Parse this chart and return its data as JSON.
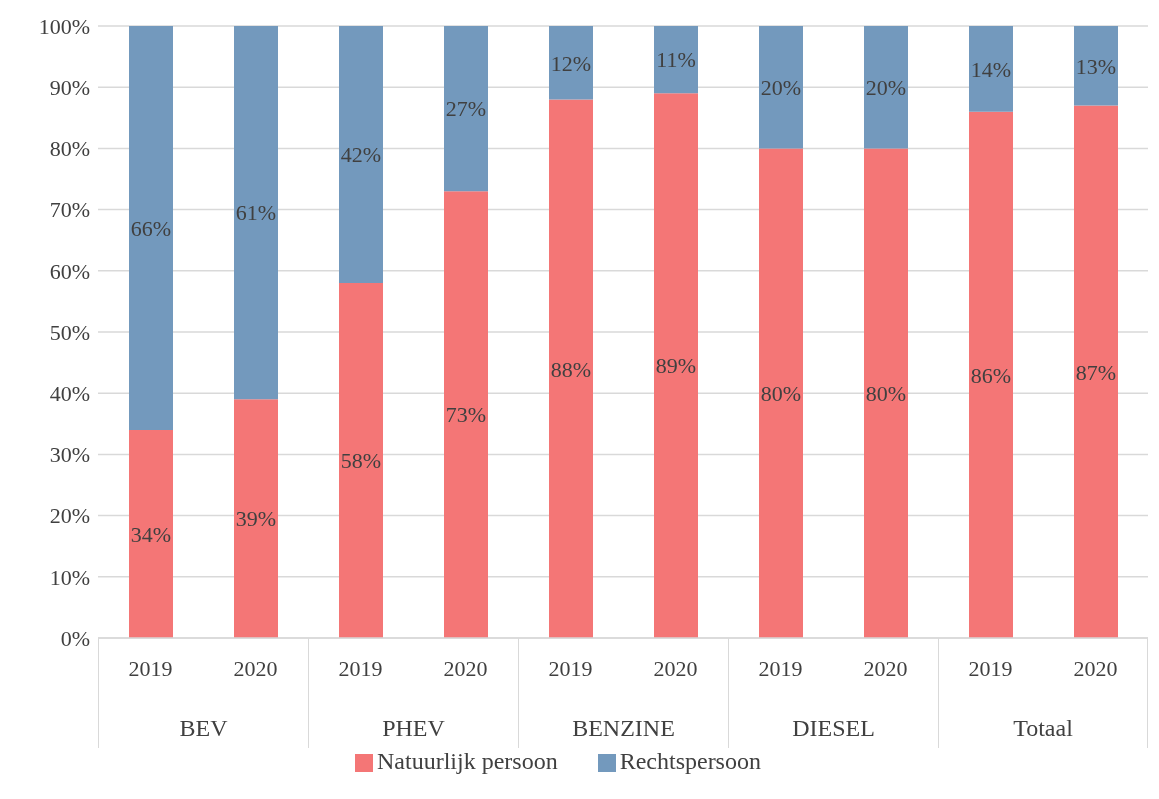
{
  "chart_data": {
    "type": "bar",
    "stacked": true,
    "categories": [
      "2019",
      "2020",
      "2019",
      "2020",
      "2019",
      "2020",
      "2019",
      "2020",
      "2019",
      "2020"
    ],
    "annotations": [
      "BEV",
      "PHEV",
      "BENZINE",
      "DIESEL",
      "Totaal"
    ],
    "series": [
      {
        "name": "Natuurlijk persoon",
        "color": "#f47676",
        "values": [
          34,
          39,
          58,
          73,
          88,
          89,
          80,
          80,
          86,
          87
        ],
        "value_labels": [
          "34%",
          "39%",
          "58%",
          "73%",
          "88%",
          "89%",
          "80%",
          "80%",
          "86%",
          "87%"
        ]
      },
      {
        "name": "Rechtspersoon",
        "color": "#7399bd",
        "values": [
          66,
          61,
          42,
          27,
          12,
          11,
          20,
          20,
          14,
          13
        ],
        "value_labels": [
          "66%",
          "61%",
          "42%",
          "27%",
          "12%",
          "11%",
          "20%",
          "20%",
          "14%",
          "13%"
        ]
      }
    ],
    "ylim": [
      0,
      100
    ],
    "yticks": [
      {
        "value": 0,
        "label": "0%"
      },
      {
        "value": 10,
        "label": "10%"
      },
      {
        "value": 20,
        "label": "20%"
      },
      {
        "value": 30,
        "label": "30%"
      },
      {
        "value": 40,
        "label": "40%"
      },
      {
        "value": 50,
        "label": "50%"
      },
      {
        "value": 60,
        "label": "60%"
      },
      {
        "value": 70,
        "label": "70%"
      },
      {
        "value": 80,
        "label": "80%"
      },
      {
        "value": 90,
        "label": "90%"
      },
      {
        "value": 100,
        "label": "100%"
      }
    ],
    "grid": "y",
    "legend": "bottom"
  }
}
